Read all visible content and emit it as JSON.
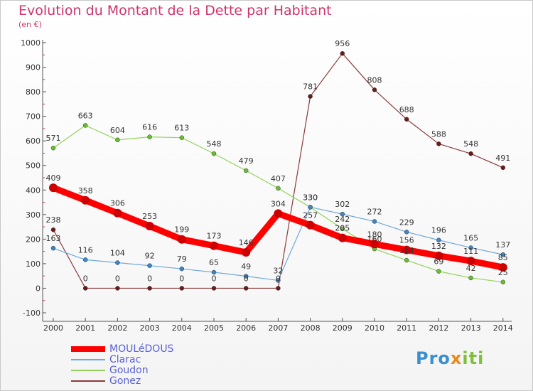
{
  "title": "Evolution du Montant de la Dette par Habitant",
  "unit": "(en €)",
  "logo": {
    "parts": [
      "Pro",
      "x",
      "iti"
    ],
    "colors": [
      "#3a8fd0",
      "#e98a1a",
      "#7fbf3c"
    ]
  },
  "chart_data": {
    "type": "line",
    "title": "Evolution du Montant de la Dette par Habitant",
    "ylabel": "(en €)",
    "xlabel": "",
    "ylim": [
      -100,
      1000
    ],
    "yticks": [
      -100,
      0,
      100,
      200,
      300,
      400,
      500,
      600,
      700,
      800,
      900,
      1000
    ],
    "categories": [
      "2000",
      "2001",
      "2002",
      "2003",
      "2004",
      "2005",
      "2006",
      "2007",
      "2008",
      "2009",
      "2010",
      "2011",
      "2012",
      "2013",
      "2014"
    ],
    "grid": false,
    "series": [
      {
        "name": "MOULéDOUS",
        "color": "#ff0000",
        "marker": "#cc0000",
        "width": 9,
        "values": [
          409,
          358,
          306,
          253,
          199,
          173,
          146,
          304,
          257,
          205,
          180,
          156,
          132,
          111,
          85
        ],
        "labels": [
          "409",
          "358",
          "306",
          "253",
          "199",
          "173",
          "146",
          "304",
          "257",
          "205",
          "180",
          "156",
          "132",
          "111",
          "85"
        ]
      },
      {
        "name": "Clarac",
        "color": "#6fa8dc",
        "marker": "#3d85c6",
        "width": 1.2,
        "values": [
          163,
          116,
          104,
          92,
          79,
          65,
          49,
          32,
          330,
          302,
          272,
          229,
          196,
          165,
          137
        ],
        "labels": [
          "163",
          "116",
          "104",
          "92",
          "79",
          "65",
          "49",
          "32",
          "330",
          "302",
          "272",
          "229",
          "196",
          "165",
          "137"
        ]
      },
      {
        "name": "Goudon",
        "color": "#93d35a",
        "marker": "#6abf2e",
        "width": 1.2,
        "values": [
          571,
          663,
          604,
          616,
          613,
          548,
          479,
          407,
          330,
          242,
          160,
          114,
          69,
          42,
          25
        ],
        "labels": [
          "571",
          "663",
          "604",
          "616",
          "613",
          "548",
          "479",
          "407",
          "330",
          "242",
          "160",
          "114",
          "69",
          "42",
          "25"
        ]
      },
      {
        "name": "Gonez",
        "color": "#8b3a3a",
        "marker": "#6b1a1a",
        "width": 1.2,
        "values": [
          238,
          0,
          0,
          0,
          0,
          0,
          0,
          0,
          781,
          956,
          808,
          688,
          588,
          548,
          491
        ],
        "labels": [
          "238",
          "0",
          "0",
          "0",
          "0",
          "0",
          "0",
          "0",
          "781",
          "956",
          "808",
          "688",
          "588",
          "548",
          "491"
        ]
      }
    ]
  }
}
